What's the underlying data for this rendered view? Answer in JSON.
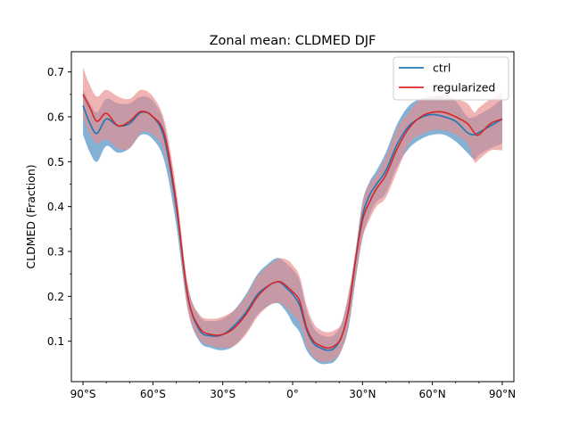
{
  "chart_data": {
    "type": "line",
    "title": "Zonal mean: CLDMED DJF",
    "xlabel": "",
    "ylabel": "CLDMED (Fraction)",
    "xlim": [
      -95,
      95
    ],
    "ylim": [
      0.01,
      0.745
    ],
    "xticks": [
      -90,
      -60,
      -30,
      0,
      30,
      60,
      90
    ],
    "xtick_labels": [
      "90°S",
      "60°S",
      "30°S",
      "0°",
      "30°N",
      "60°N",
      "90°N"
    ],
    "yticks": [
      0.1,
      0.2,
      0.3,
      0.4,
      0.5,
      0.6,
      0.7
    ],
    "ytick_labels": [
      "0.1",
      "0.2",
      "0.3",
      "0.4",
      "0.5",
      "0.6",
      "0.7"
    ],
    "legend_position": "top-right",
    "x": [
      -90,
      -87,
      -84,
      -80,
      -75,
      -70,
      -65,
      -60,
      -55,
      -50,
      -45,
      -40,
      -35,
      -30,
      -25,
      -20,
      -15,
      -10,
      -7,
      -5,
      -2,
      0,
      3,
      6,
      9,
      12,
      15,
      18,
      21,
      24,
      27,
      30,
      33,
      36,
      40,
      45,
      50,
      55,
      60,
      65,
      70,
      75,
      78,
      80,
      85,
      90
    ],
    "series": [
      {
        "name": "ctrl",
        "color": "#1f77b4",
        "band_color": "#6fa3cf",
        "values": [
          0.625,
          0.585,
          0.563,
          0.595,
          0.58,
          0.585,
          0.61,
          0.6,
          0.55,
          0.4,
          0.2,
          0.125,
          0.112,
          0.115,
          0.135,
          0.165,
          0.205,
          0.225,
          0.232,
          0.23,
          0.215,
          0.205,
          0.18,
          0.125,
          0.095,
          0.085,
          0.08,
          0.085,
          0.11,
          0.17,
          0.28,
          0.38,
          0.425,
          0.45,
          0.48,
          0.54,
          0.58,
          0.598,
          0.605,
          0.6,
          0.59,
          0.565,
          0.56,
          0.565,
          0.58,
          0.595
        ],
        "lower": [
          0.56,
          0.52,
          0.5,
          0.535,
          0.52,
          0.53,
          0.56,
          0.55,
          0.5,
          0.36,
          0.17,
          0.1,
          0.085,
          0.08,
          0.09,
          0.12,
          0.16,
          0.18,
          0.185,
          0.18,
          0.16,
          0.14,
          0.12,
          0.08,
          0.06,
          0.05,
          0.05,
          0.055,
          0.08,
          0.13,
          0.235,
          0.33,
          0.38,
          0.41,
          0.43,
          0.49,
          0.53,
          0.55,
          0.56,
          0.56,
          0.545,
          0.52,
          0.505,
          0.515,
          0.53,
          0.54
        ],
        "upper": [
          0.66,
          0.63,
          0.61,
          0.64,
          0.63,
          0.63,
          0.645,
          0.635,
          0.58,
          0.42,
          0.225,
          0.155,
          0.145,
          0.15,
          0.17,
          0.205,
          0.25,
          0.275,
          0.285,
          0.283,
          0.27,
          0.26,
          0.235,
          0.17,
          0.13,
          0.115,
          0.11,
          0.115,
          0.14,
          0.205,
          0.3,
          0.41,
          0.455,
          0.48,
          0.52,
          0.585,
          0.625,
          0.64,
          0.645,
          0.645,
          0.635,
          0.6,
          0.6,
          0.605,
          0.62,
          0.64
        ]
      },
      {
        "name": "regularized",
        "color": "#d62728",
        "band_color": "#e98c8c",
        "values": [
          0.65,
          0.62,
          0.59,
          0.608,
          0.58,
          0.59,
          0.612,
          0.6,
          0.56,
          0.41,
          0.2,
          0.13,
          0.115,
          0.115,
          0.13,
          0.16,
          0.2,
          0.225,
          0.232,
          0.232,
          0.22,
          0.21,
          0.19,
          0.13,
          0.1,
          0.09,
          0.085,
          0.09,
          0.11,
          0.17,
          0.28,
          0.37,
          0.41,
          0.44,
          0.47,
          0.53,
          0.575,
          0.6,
          0.61,
          0.61,
          0.6,
          0.585,
          0.565,
          0.56,
          0.585,
          0.595
        ],
        "lower": [
          0.6,
          0.56,
          0.54,
          0.55,
          0.53,
          0.53,
          0.565,
          0.56,
          0.52,
          0.38,
          0.17,
          0.105,
          0.09,
          0.085,
          0.09,
          0.115,
          0.155,
          0.18,
          0.185,
          0.185,
          0.17,
          0.16,
          0.14,
          0.09,
          0.065,
          0.055,
          0.055,
          0.06,
          0.08,
          0.135,
          0.24,
          0.33,
          0.37,
          0.4,
          0.42,
          0.48,
          0.54,
          0.56,
          0.57,
          0.57,
          0.56,
          0.54,
          0.5,
          0.505,
          0.525,
          0.525
        ],
        "upper": [
          0.71,
          0.67,
          0.645,
          0.66,
          0.645,
          0.64,
          0.66,
          0.645,
          0.59,
          0.44,
          0.225,
          0.16,
          0.15,
          0.155,
          0.17,
          0.2,
          0.245,
          0.27,
          0.28,
          0.285,
          0.28,
          0.27,
          0.245,
          0.18,
          0.14,
          0.125,
          0.12,
          0.125,
          0.14,
          0.205,
          0.3,
          0.41,
          0.45,
          0.47,
          0.51,
          0.575,
          0.61,
          0.64,
          0.645,
          0.65,
          0.64,
          0.63,
          0.61,
          0.62,
          0.64,
          0.655
        ]
      }
    ]
  }
}
